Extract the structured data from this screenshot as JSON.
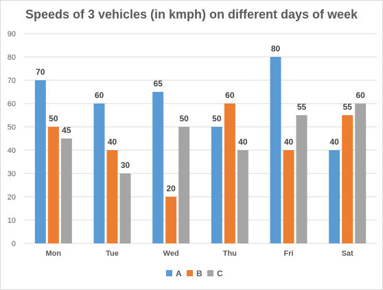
{
  "chart_data": {
    "type": "bar",
    "title": "Speeds of 3 vehicles (in kmph) on different days of week",
    "categories": [
      "Mon",
      "Tue",
      "Wed",
      "Thu",
      "Fri",
      "Sat"
    ],
    "series": [
      {
        "name": "A",
        "color": "#5b9bd5",
        "values": [
          70,
          60,
          65,
          50,
          80,
          40
        ]
      },
      {
        "name": "B",
        "color": "#ed7d31",
        "values": [
          50,
          40,
          20,
          60,
          40,
          55
        ]
      },
      {
        "name": "C",
        "color": "#a5a5a5",
        "values": [
          45,
          30,
          50,
          40,
          55,
          60
        ]
      }
    ],
    "ylim": [
      0,
      90
    ],
    "yticks": [
      0,
      10,
      20,
      30,
      40,
      50,
      60,
      70,
      80,
      90
    ],
    "grid": true,
    "legend": "bottom"
  }
}
